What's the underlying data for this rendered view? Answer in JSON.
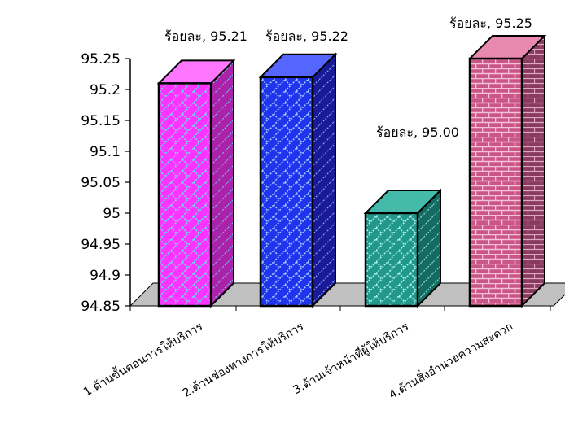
{
  "chart_data": {
    "type": "bar",
    "categories": [
      "1.ด้านขั้นตอนการให้บริการ",
      "2.ด้านช่องทางการให้บริการ",
      "3.ด้านเจ้าหน้าที่ผู้ให้บริการ",
      "4.ด้านสิ่งอำนวยความสะดวก"
    ],
    "values": [
      95.21,
      95.22,
      95.0,
      95.25
    ],
    "data_labels": [
      "ร้อยละ, 95.21",
      "ร้อยละ, 95.22",
      "ร้อยละ, 95.00",
      "ร้อยละ, 95.25"
    ],
    "y_ticks": [
      "95.25",
      "95.2",
      "95.15",
      "95.1",
      "95.05",
      "95",
      "94.95",
      "94.9",
      "94.85"
    ],
    "ylim": [
      94.85,
      95.25
    ],
    "title": "",
    "xlabel": "",
    "ylabel": "",
    "grid": false,
    "legend": "none",
    "colors": {
      "bars": [
        "#ff33ff",
        "#2233ee",
        "#229988",
        "#cc5588"
      ],
      "bar_sides": [
        "#aa22aa",
        "#1a1a99",
        "#146b60",
        "#8a3a60"
      ],
      "bar_tops": [
        "#ff77ff",
        "#5566ff",
        "#44bbaa",
        "#e88ab0"
      ],
      "pattern_lines": [
        "#66ddee",
        "#99ccff",
        "#aaeeff",
        "#f4c0d8"
      ],
      "floor": "#c0c0c0",
      "outline": "#000000"
    }
  }
}
